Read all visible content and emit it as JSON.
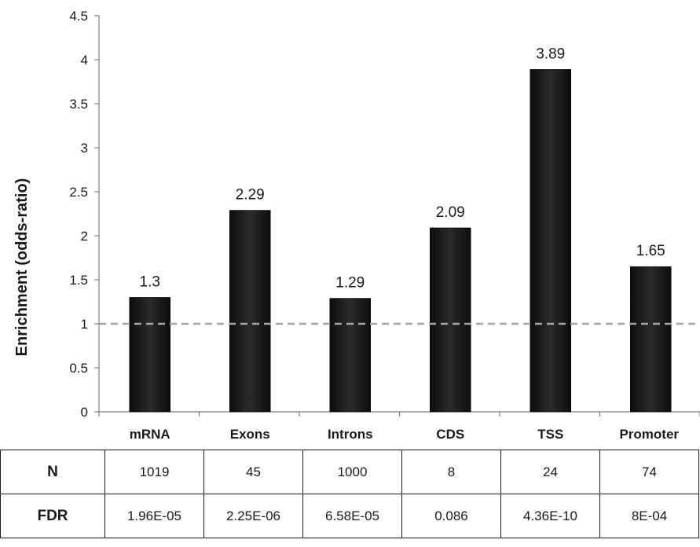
{
  "chart_data": {
    "type": "bar",
    "ylabel": "Enrichment (odds-ratio)",
    "xlabel": "",
    "categories": [
      "mRNA",
      "Exons",
      "Introns",
      "CDS",
      "TSS",
      "Promoter"
    ],
    "values": [
      1.3,
      2.29,
      1.29,
      2.09,
      3.89,
      1.65
    ],
    "data_labels": [
      "1.3",
      "2.29",
      "1.29",
      "2.09",
      "3.89",
      "1.65"
    ],
    "ylim": [
      0,
      4.5
    ],
    "yticks": [
      "0",
      "0.5",
      "1",
      "1.5",
      "2",
      "2.5",
      "3",
      "3.5",
      "4",
      "4.5"
    ],
    "reference_line": {
      "y": 1,
      "style": "dashed",
      "color": "#a6a6a6"
    },
    "bar_color": "#1a1a1a",
    "grid": false
  },
  "table": {
    "rows": [
      {
        "label": "N",
        "values": [
          "1019",
          "45",
          "1000",
          "8",
          "24",
          "74"
        ]
      },
      {
        "label": "FDR",
        "values": [
          "1.96E-05",
          "2.25E-06",
          "6.58E-05",
          "0.086",
          "4.36E-10",
          "8E-04"
        ]
      }
    ]
  }
}
